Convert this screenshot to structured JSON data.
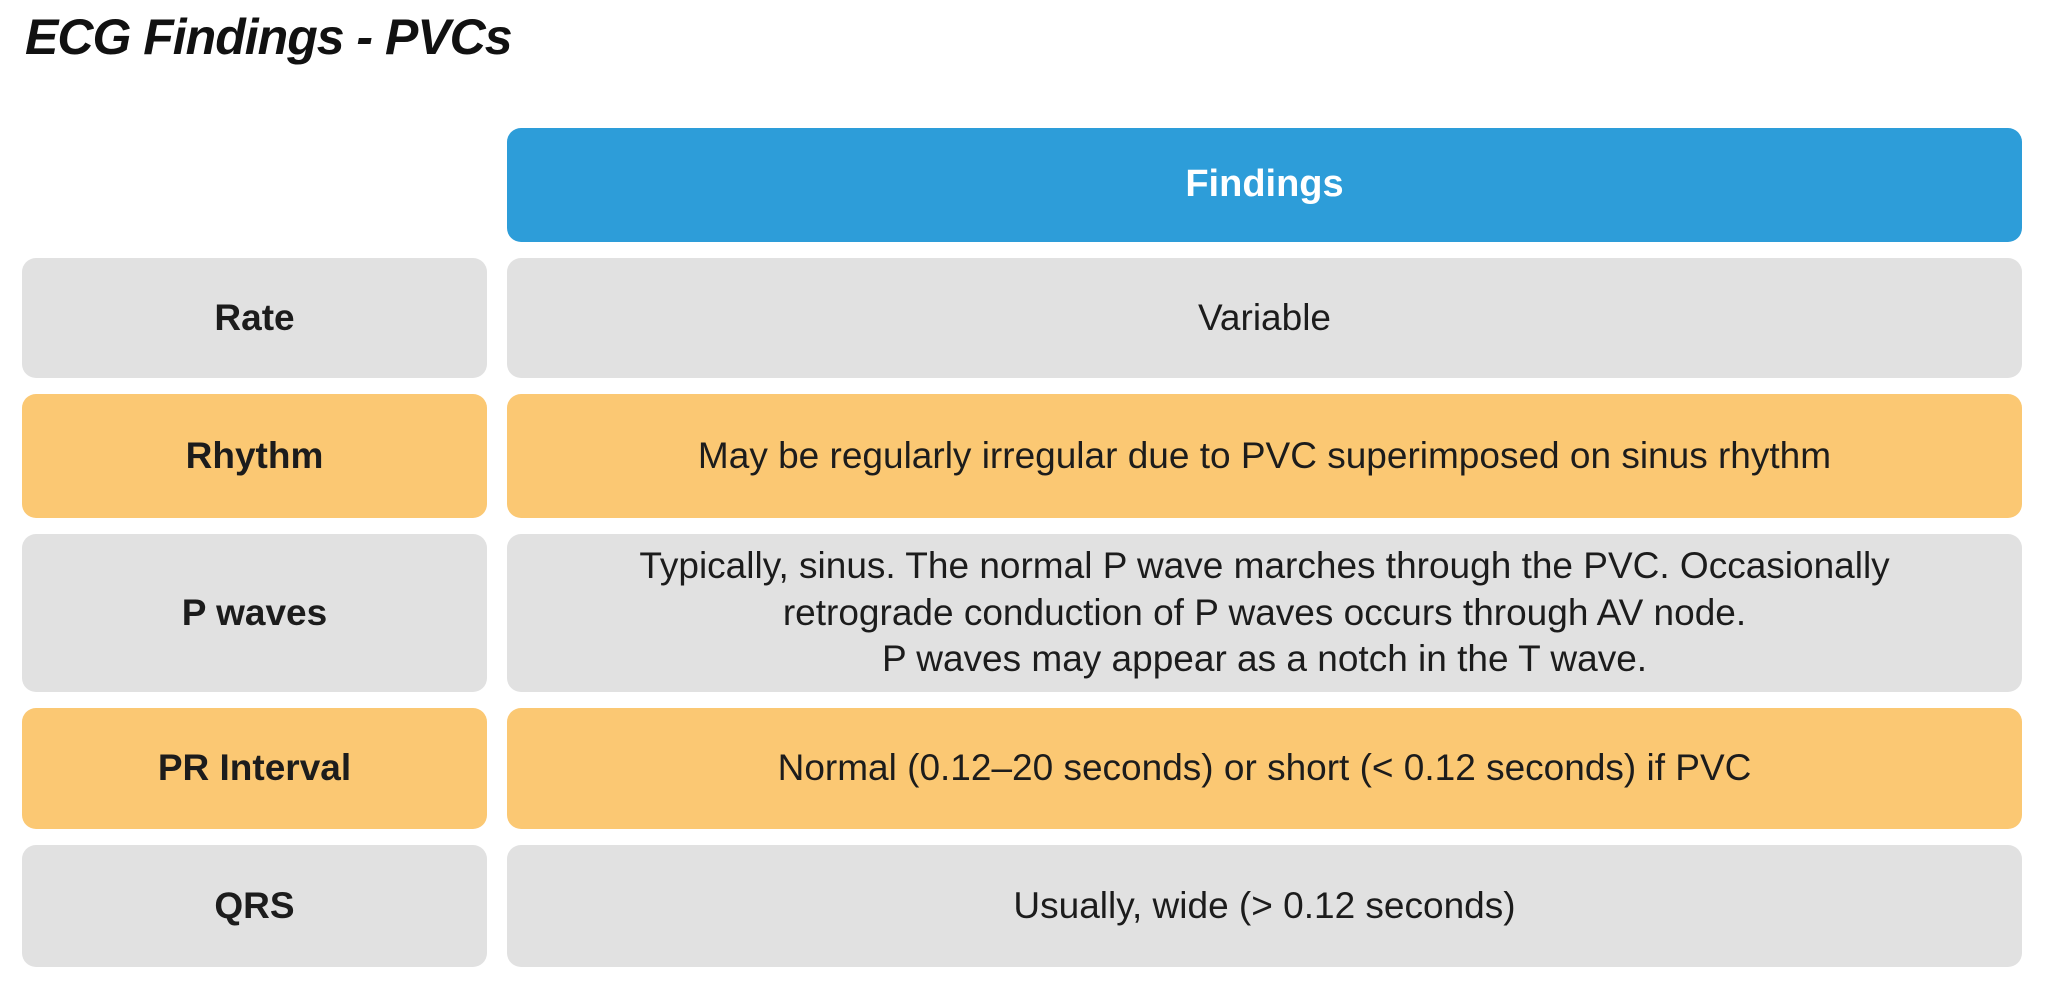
{
  "title": "ECG Findings - PVCs",
  "colors": {
    "page_bg": "#FFFFFF",
    "header_bg": "#2D9DD9",
    "header_text": "#FFFFFF",
    "row_gray_bg": "#E1E1E1",
    "row_orange_bg": "#FBC873",
    "body_text": "#1C1C1C"
  },
  "table": {
    "header": "Findings",
    "rows": [
      {
        "label": "Rate",
        "finding": "Variable",
        "tone": "gray"
      },
      {
        "label": "Rhythm",
        "finding": "May be regularly irregular due to PVC superimposed on sinus rhythm",
        "tone": "orange"
      },
      {
        "label": "P waves",
        "finding": "Typically, sinus. The normal P wave marches through the PVC. Occasionally\nretrograde conduction of P waves occurs through AV node.\nP waves may appear as a notch in the T wave.",
        "tone": "gray"
      },
      {
        "label": "PR Interval",
        "finding": "Normal (0.12–20 seconds) or short (< 0.12 seconds) if PVC",
        "tone": "orange"
      },
      {
        "label": "QRS",
        "finding": "Usually, wide (> 0.12 seconds)",
        "tone": "gray"
      }
    ]
  }
}
